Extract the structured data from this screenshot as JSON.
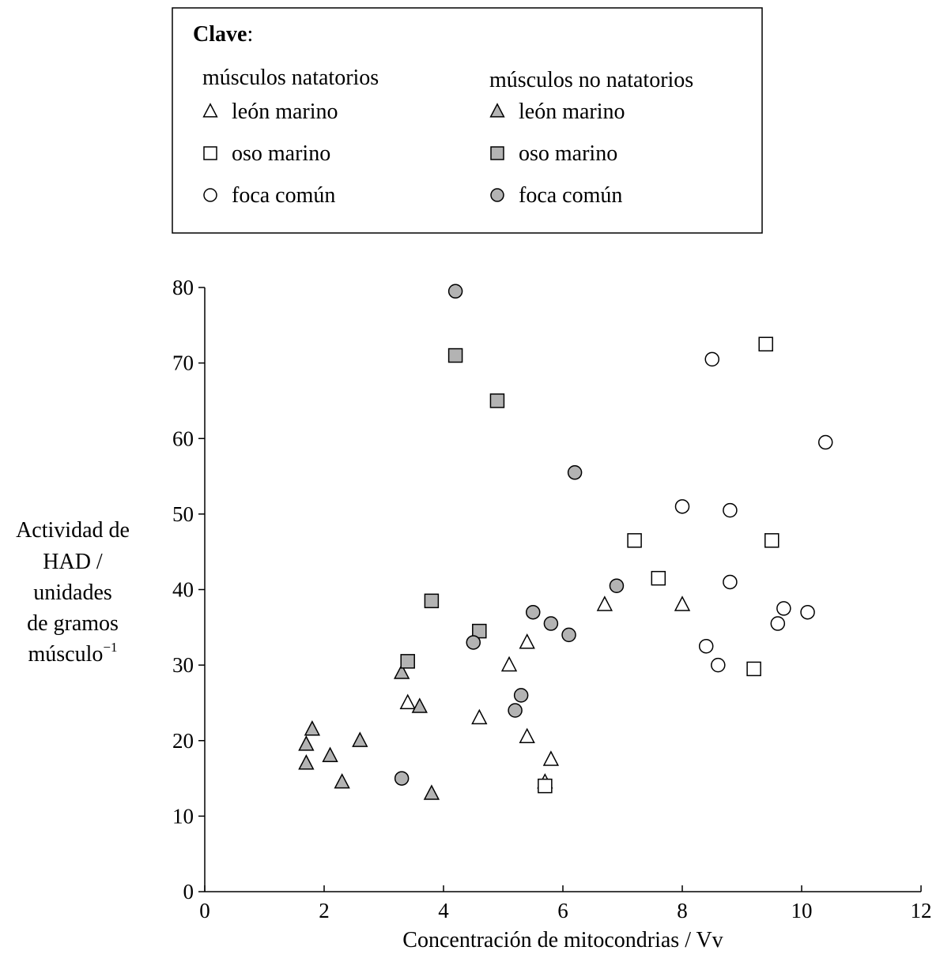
{
  "chart_data": {
    "type": "scatter",
    "xlabel": "Concentración de mitocondrias / Vv",
    "ylabel_lines": [
      "Actividad de",
      "HAD /",
      "unidades",
      "de gramos"
    ],
    "ylabel_last_base": "músculo",
    "ylabel_last_sup": "−1",
    "xlim": [
      0,
      12
    ],
    "ylim": [
      0,
      80
    ],
    "xticks": [
      "0",
      "2",
      "4",
      "6",
      "8",
      "10",
      "12"
    ],
    "yticks": [
      "0",
      "10",
      "20",
      "30",
      "40",
      "50",
      "60",
      "70",
      "80"
    ],
    "grid": false,
    "legend": {
      "title": "Clave",
      "title_suffix": ":",
      "group_swimming": "músculos natatorios",
      "group_nonswimming": "músculos no natatorios",
      "position": "top"
    },
    "series": [
      {
        "name": "león marino",
        "group": "músculos natatorios",
        "marker": "triangle",
        "filled": false,
        "points": [
          [
            3.4,
            25
          ],
          [
            4.6,
            23
          ],
          [
            5.1,
            30
          ],
          [
            5.4,
            33
          ],
          [
            5.4,
            20.5
          ],
          [
            5.8,
            17.5
          ],
          [
            5.7,
            14.5
          ],
          [
            6.7,
            38
          ],
          [
            8.0,
            38
          ]
        ]
      },
      {
        "name": "oso marino",
        "group": "músculos natatorios",
        "marker": "square",
        "filled": false,
        "points": [
          [
            5.7,
            14
          ],
          [
            7.2,
            46.5
          ],
          [
            7.6,
            41.5
          ],
          [
            9.2,
            29.5
          ],
          [
            9.4,
            72.5
          ],
          [
            9.5,
            46.5
          ]
        ]
      },
      {
        "name": "foca común",
        "group": "músculos natatorios",
        "marker": "circle",
        "filled": false,
        "points": [
          [
            8.0,
            51
          ],
          [
            8.4,
            32.5
          ],
          [
            8.5,
            70.5
          ],
          [
            8.6,
            30
          ],
          [
            8.8,
            50.5
          ],
          [
            8.8,
            41
          ],
          [
            9.6,
            35.5
          ],
          [
            9.7,
            37.5
          ],
          [
            10.1,
            37
          ],
          [
            10.4,
            59.5
          ]
        ]
      },
      {
        "name": "león marino",
        "group": "músculos no natatorios",
        "marker": "triangle",
        "filled": true,
        "points": [
          [
            1.7,
            19.5
          ],
          [
            1.7,
            17
          ],
          [
            1.8,
            21.5
          ],
          [
            2.1,
            18
          ],
          [
            2.3,
            14.5
          ],
          [
            2.6,
            20
          ],
          [
            3.3,
            29
          ],
          [
            3.6,
            24.5
          ],
          [
            3.8,
            13
          ]
        ]
      },
      {
        "name": "oso marino",
        "group": "músculos no natatorios",
        "marker": "square",
        "filled": true,
        "points": [
          [
            3.4,
            30.5
          ],
          [
            3.8,
            38.5
          ],
          [
            4.2,
            71
          ],
          [
            4.6,
            34.5
          ],
          [
            4.9,
            65
          ]
        ]
      },
      {
        "name": "foca común",
        "group": "músculos no natatorios",
        "marker": "circle",
        "filled": true,
        "points": [
          [
            3.3,
            15
          ],
          [
            4.2,
            79.5
          ],
          [
            4.5,
            33
          ],
          [
            5.2,
            24
          ],
          [
            5.3,
            26
          ],
          [
            5.5,
            37
          ],
          [
            5.8,
            35.5
          ],
          [
            6.1,
            34
          ],
          [
            6.2,
            55.5
          ],
          [
            6.9,
            40.5
          ]
        ]
      }
    ],
    "colors": {
      "fill": "#b3b3b3",
      "stroke": "#000000",
      "open": "#ffffff"
    }
  }
}
